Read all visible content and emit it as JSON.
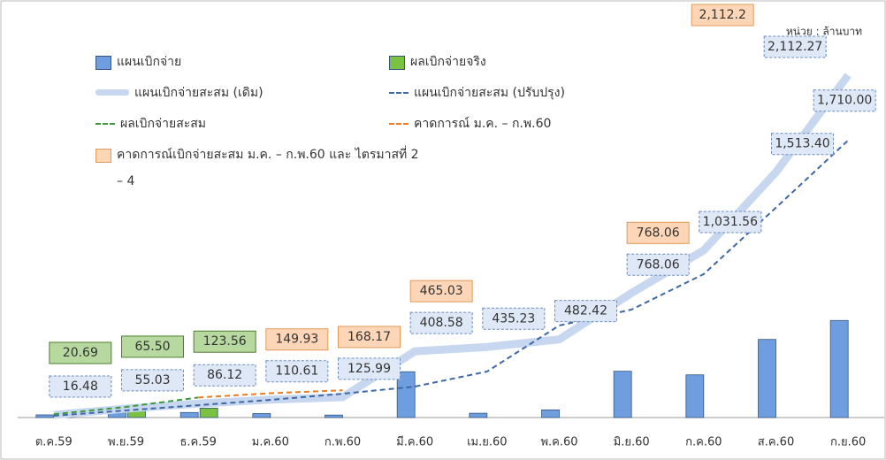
{
  "chart_data": {
    "type": "combo",
    "unit": "หน่วย : ล้านบาท",
    "categories": [
      "ต.ค.59",
      "พ.ย.59",
      "ธ.ค.59",
      "ม.ค.60",
      "ก.พ.60",
      "มี.ค.60",
      "เม.ย.60",
      "พ.ค.60",
      "มิ.ย.60",
      "ก.ค.60",
      "ส.ค.60",
      "ก.ย.60"
    ],
    "series": [
      {
        "name": "แผนเบิกจ่าย",
        "kind": "bar",
        "color": "#6f9ee0",
        "values": [
          16.48,
          38.55,
          31.09,
          24.49,
          15.38,
          282.59,
          26.65,
          47.19,
          285.64,
          263.5,
          481.84,
          598.87
        ]
      },
      {
        "name": "ผลเบิกจ่ายจริง",
        "kind": "bar",
        "color": "#7cc242",
        "values": [
          20.69,
          44.81,
          58.06,
          null,
          null,
          null,
          null,
          null,
          null,
          null,
          null,
          null
        ]
      },
      {
        "name": "แผนเบิกจ่ายสะสม (เดิม)",
        "kind": "thick-line",
        "color": "#c6d7ef",
        "values": [
          16.48,
          55.03,
          86.12,
          110.61,
          125.99,
          408.58,
          435.23,
          482.42,
          768.06,
          1031.56,
          1513.4,
          2112.27
        ],
        "value_labels": [
          "16.48",
          "55.03",
          "86.12",
          "110.61",
          "125.99",
          "408.58",
          "435.23",
          "482.42",
          "768.06",
          "1,031.56",
          "1,513.40",
          "2,112.27"
        ]
      },
      {
        "name": "แผนเบิกจ่ายสะสม (ปรับปรุง)",
        "kind": "dash-line",
        "color": "#3d67a5",
        "values": [
          11,
          44,
          76,
          109,
          147,
          191,
          284,
          568,
          666,
          885,
          1295,
          1710
        ],
        "value_labels": [
          null,
          null,
          null,
          null,
          null,
          null,
          null,
          null,
          null,
          null,
          null,
          "1,710.00"
        ]
      },
      {
        "name": "ผลเบิกจ่ายสะสม",
        "kind": "dash-line",
        "color": "#3a9a3a",
        "values": [
          20.69,
          65.5,
          123.56,
          null,
          null,
          null,
          null,
          null,
          null,
          null,
          null,
          null
        ],
        "value_labels": [
          "20.69",
          "65.50",
          "123.56",
          null,
          null,
          null,
          null,
          null,
          null,
          null,
          null,
          null
        ]
      },
      {
        "name": "คาดการณ์ ม.ค. – ก.พ.60",
        "kind": "dash-line",
        "color": "#f07a22",
        "values": [
          null,
          null,
          123.56,
          149.93,
          168.17,
          null,
          null,
          null,
          null,
          null,
          null,
          null
        ]
      },
      {
        "name": "คาดการณ์เบิกจ่ายสะสม ม.ค. – ก.พ.60 และ ไตรมาสที่ 2 – 4",
        "kind": "label-box",
        "color": "#fcd6b6",
        "values": [
          null,
          null,
          null,
          149.93,
          168.17,
          465.03,
          null,
          null,
          768.06,
          null,
          null,
          2112.2
        ],
        "value_labels": [
          null,
          null,
          null,
          "149.93",
          "168.17",
          "465.03",
          null,
          null,
          "768.06",
          null,
          null,
          "2,112.2"
        ]
      }
    ]
  }
}
